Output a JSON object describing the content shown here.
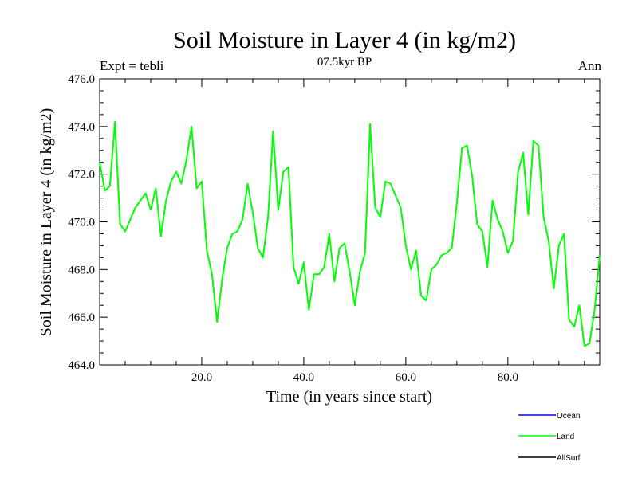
{
  "chart_data": {
    "type": "line",
    "title": "Soil Moisture in Layer 4 (in kg/m2)",
    "subtitle": "07.5kyr BP",
    "left_label": "Expt = tebli",
    "right_label": "Ann",
    "xlabel": "Time (in years since start)",
    "ylabel": "Soil Moisture in Layer 4 (in kg/m2)",
    "xlim": [
      0,
      98
    ],
    "ylim": [
      464,
      476
    ],
    "x_ticks": [
      20,
      40,
      60,
      80
    ],
    "x_tick_labels": [
      "20.0",
      "40.0",
      "60.0",
      "80.0"
    ],
    "y_ticks": [
      464,
      466,
      468,
      470,
      472,
      474,
      476
    ],
    "y_tick_labels": [
      "464.0",
      "466.0",
      "468.0",
      "470.0",
      "472.0",
      "474.0",
      "476.0"
    ],
    "legend": [
      {
        "name": "Ocean",
        "color": "#0000ff"
      },
      {
        "name": "Land",
        "color": "#00ff00"
      },
      {
        "name": "AllSurf",
        "color": "#000000"
      }
    ],
    "series": [
      {
        "name": "Land",
        "color": "#00ff00",
        "x": [
          0,
          1,
          2,
          3,
          4,
          5,
          6,
          7,
          8,
          9,
          10,
          11,
          12,
          13,
          14,
          15,
          16,
          17,
          18,
          19,
          20,
          21,
          22,
          23,
          24,
          25,
          26,
          27,
          28,
          29,
          30,
          31,
          32,
          33,
          34,
          35,
          36,
          37,
          38,
          39,
          40,
          41,
          42,
          43,
          44,
          45,
          46,
          47,
          48,
          49,
          50,
          51,
          52,
          53,
          54,
          55,
          56,
          57,
          58,
          59,
          60,
          61,
          62,
          63,
          64,
          65,
          66,
          67,
          68,
          69,
          70,
          71,
          72,
          73,
          74,
          75,
          76,
          77,
          78,
          79,
          80,
          81,
          82,
          83,
          84,
          85,
          86,
          87,
          88,
          89,
          90,
          91,
          92,
          93,
          94,
          95,
          96,
          97,
          98
        ],
        "values": [
          472.5,
          471.3,
          471.5,
          474.2,
          469.9,
          469.6,
          470.1,
          470.6,
          470.9,
          471.2,
          470.5,
          471.4,
          469.4,
          470.9,
          471.7,
          472.1,
          471.6,
          472.6,
          474.0,
          471.4,
          471.7,
          468.8,
          467.8,
          465.8,
          467.6,
          468.9,
          469.5,
          469.6,
          470.1,
          471.6,
          470.4,
          468.9,
          468.5,
          470.2,
          473.8,
          470.5,
          472.1,
          472.3,
          468.1,
          467.4,
          468.3,
          466.3,
          467.8,
          467.8,
          468.1,
          469.5,
          467.5,
          468.9,
          469.1,
          467.9,
          466.5,
          467.9,
          468.7,
          474.1,
          470.6,
          470.2,
          471.7,
          471.6,
          471.1,
          470.6,
          469.0,
          468.0,
          468.8,
          466.9,
          466.7,
          468.0,
          468.2,
          468.6,
          468.7,
          468.9,
          470.8,
          473.1,
          473.2,
          471.9,
          469.9,
          469.6,
          468.1,
          470.9,
          470.1,
          469.6,
          468.7,
          469.2,
          472.1,
          472.9,
          470.3,
          473.4,
          473.2,
          470.2,
          469.2,
          467.2,
          469.0,
          469.5,
          465.9,
          465.6,
          466.5,
          464.8,
          464.9,
          466.3,
          468.6
        ]
      }
    ]
  }
}
